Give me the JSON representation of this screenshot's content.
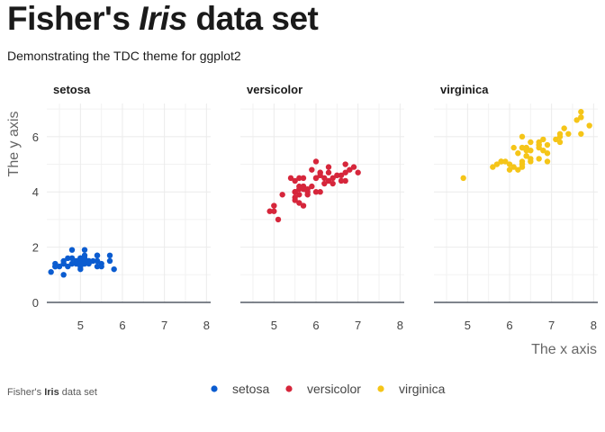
{
  "header": {
    "title_prefix": "Fisher's ",
    "title_italic": "Iris",
    "title_suffix": " data set",
    "subtitle": "Demonstrating the TDC theme for ggplot2"
  },
  "caption": {
    "prefix": "Fisher's ",
    "bold": "Iris",
    "suffix": " data set"
  },
  "colors": {
    "setosa": "#0b5cd0",
    "versicolor": "#d6263b",
    "virginica": "#f5c518"
  },
  "chart_data": {
    "type": "scatter",
    "xlabel": "The x axis",
    "ylabel": "The y axis",
    "xlim": [
      4.2,
      8.1
    ],
    "ylim": [
      0,
      7.2
    ],
    "xticks": [
      5,
      6,
      7,
      8
    ],
    "yticks": [
      0,
      2,
      4,
      6
    ],
    "grid": true,
    "legend_position": "bottom",
    "series": [
      {
        "name": "setosa",
        "points": [
          [
            5.1,
            1.4
          ],
          [
            4.9,
            1.4
          ],
          [
            4.7,
            1.3
          ],
          [
            4.6,
            1.5
          ],
          [
            5.0,
            1.4
          ],
          [
            5.4,
            1.7
          ],
          [
            4.6,
            1.4
          ],
          [
            5.0,
            1.5
          ],
          [
            4.4,
            1.4
          ],
          [
            4.9,
            1.5
          ],
          [
            5.4,
            1.5
          ],
          [
            4.8,
            1.6
          ],
          [
            4.8,
            1.4
          ],
          [
            4.3,
            1.1
          ],
          [
            5.8,
            1.2
          ],
          [
            5.7,
            1.5
          ],
          [
            5.4,
            1.3
          ],
          [
            5.1,
            1.4
          ],
          [
            5.7,
            1.7
          ],
          [
            5.1,
            1.5
          ],
          [
            5.4,
            1.7
          ],
          [
            5.1,
            1.5
          ],
          [
            4.6,
            1.0
          ],
          [
            5.1,
            1.7
          ],
          [
            4.8,
            1.9
          ],
          [
            5.0,
            1.6
          ],
          [
            5.0,
            1.6
          ],
          [
            5.2,
            1.5
          ],
          [
            5.2,
            1.4
          ],
          [
            4.7,
            1.6
          ],
          [
            4.8,
            1.6
          ],
          [
            5.4,
            1.5
          ],
          [
            5.2,
            1.5
          ],
          [
            5.5,
            1.4
          ],
          [
            4.9,
            1.5
          ],
          [
            5.0,
            1.2
          ],
          [
            5.5,
            1.3
          ],
          [
            4.9,
            1.4
          ],
          [
            4.4,
            1.3
          ],
          [
            5.1,
            1.5
          ],
          [
            5.0,
            1.3
          ],
          [
            4.5,
            1.3
          ],
          [
            4.4,
            1.3
          ],
          [
            5.0,
            1.6
          ],
          [
            5.1,
            1.9
          ],
          [
            4.8,
            1.4
          ],
          [
            5.1,
            1.6
          ],
          [
            4.6,
            1.4
          ],
          [
            5.3,
            1.5
          ],
          [
            5.0,
            1.4
          ]
        ]
      },
      {
        "name": "versicolor",
        "points": [
          [
            7.0,
            4.7
          ],
          [
            6.4,
            4.5
          ],
          [
            6.9,
            4.9
          ],
          [
            5.5,
            4.0
          ],
          [
            6.5,
            4.6
          ],
          [
            5.7,
            4.5
          ],
          [
            6.3,
            4.7
          ],
          [
            4.9,
            3.3
          ],
          [
            6.6,
            4.6
          ],
          [
            5.2,
            3.9
          ],
          [
            5.0,
            3.5
          ],
          [
            5.9,
            4.2
          ],
          [
            6.0,
            4.0
          ],
          [
            6.1,
            4.7
          ],
          [
            5.6,
            3.6
          ],
          [
            6.7,
            4.4
          ],
          [
            5.6,
            4.5
          ],
          [
            5.8,
            4.1
          ],
          [
            6.2,
            4.5
          ],
          [
            5.6,
            3.9
          ],
          [
            5.9,
            4.8
          ],
          [
            6.1,
            4.0
          ],
          [
            6.3,
            4.9
          ],
          [
            6.1,
            4.7
          ],
          [
            6.4,
            4.3
          ],
          [
            6.6,
            4.4
          ],
          [
            6.8,
            4.8
          ],
          [
            6.7,
            5.0
          ],
          [
            6.0,
            4.5
          ],
          [
            5.7,
            3.5
          ],
          [
            5.5,
            3.8
          ],
          [
            5.5,
            3.7
          ],
          [
            5.8,
            3.9
          ],
          [
            6.0,
            5.1
          ],
          [
            5.4,
            4.5
          ],
          [
            6.0,
            4.5
          ],
          [
            6.7,
            4.7
          ],
          [
            6.3,
            4.4
          ],
          [
            5.6,
            4.1
          ],
          [
            5.5,
            4.0
          ],
          [
            5.5,
            4.4
          ],
          [
            6.1,
            4.6
          ],
          [
            5.8,
            4.0
          ],
          [
            5.0,
            3.3
          ],
          [
            5.6,
            4.2
          ],
          [
            5.7,
            4.2
          ],
          [
            5.7,
            4.2
          ],
          [
            6.2,
            4.3
          ],
          [
            5.1,
            3.0
          ],
          [
            5.7,
            4.1
          ]
        ]
      },
      {
        "name": "virginica",
        "points": [
          [
            6.3,
            6.0
          ],
          [
            5.8,
            5.1
          ],
          [
            7.1,
            5.9
          ],
          [
            6.3,
            5.6
          ],
          [
            6.5,
            5.8
          ],
          [
            7.6,
            6.6
          ],
          [
            4.9,
            4.5
          ],
          [
            7.3,
            6.3
          ],
          [
            6.7,
            5.8
          ],
          [
            7.2,
            6.1
          ],
          [
            6.5,
            5.1
          ],
          [
            6.4,
            5.3
          ],
          [
            6.8,
            5.5
          ],
          [
            5.7,
            5.0
          ],
          [
            5.8,
            5.1
          ],
          [
            6.4,
            5.3
          ],
          [
            6.5,
            5.5
          ],
          [
            7.7,
            6.7
          ],
          [
            7.7,
            6.9
          ],
          [
            6.0,
            5.0
          ],
          [
            6.9,
            5.7
          ],
          [
            5.6,
            4.9
          ],
          [
            7.7,
            6.7
          ],
          [
            6.3,
            4.9
          ],
          [
            6.7,
            5.7
          ],
          [
            7.2,
            6.0
          ],
          [
            6.2,
            4.8
          ],
          [
            6.1,
            4.9
          ],
          [
            6.4,
            5.6
          ],
          [
            7.2,
            5.8
          ],
          [
            7.4,
            6.1
          ],
          [
            7.9,
            6.4
          ],
          [
            6.4,
            5.6
          ],
          [
            6.3,
            5.1
          ],
          [
            6.1,
            5.6
          ],
          [
            7.7,
            6.1
          ],
          [
            6.3,
            5.6
          ],
          [
            6.4,
            5.5
          ],
          [
            6.0,
            4.8
          ],
          [
            6.9,
            5.4
          ],
          [
            6.7,
            5.6
          ],
          [
            6.9,
            5.1
          ],
          [
            5.8,
            5.1
          ],
          [
            6.8,
            5.9
          ],
          [
            6.7,
            5.7
          ],
          [
            6.7,
            5.2
          ],
          [
            6.3,
            5.0
          ],
          [
            6.5,
            5.2
          ],
          [
            6.2,
            5.4
          ],
          [
            5.9,
            5.1
          ]
        ]
      }
    ]
  }
}
